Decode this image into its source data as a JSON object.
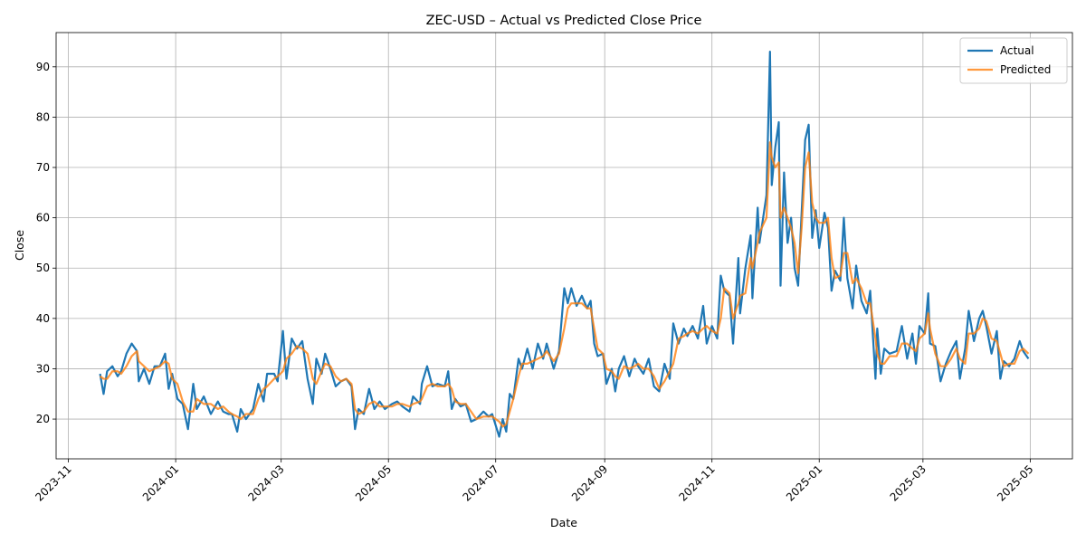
{
  "chart_data": {
    "type": "line",
    "title": "ZEC-USD – Actual vs Predicted Close Price",
    "xlabel": "Date",
    "ylabel": "Close",
    "x": [
      "2023-11-19",
      "2023-11-21",
      "2023-11-23",
      "2023-11-26",
      "2023-11-29",
      "2023-12-01",
      "2023-12-04",
      "2023-12-07",
      "2023-12-10",
      "2023-12-11",
      "2023-12-14",
      "2023-12-17",
      "2023-12-20",
      "2023-12-23",
      "2023-12-26",
      "2023-12-28",
      "2023-12-30",
      "2024-01-02",
      "2024-01-05",
      "2024-01-08",
      "2024-01-11",
      "2024-01-13",
      "2024-01-17",
      "2024-01-21",
      "2024-01-25",
      "2024-01-28",
      "2024-01-31",
      "2024-02-02",
      "2024-02-05",
      "2024-02-07",
      "2024-02-10",
      "2024-02-14",
      "2024-02-17",
      "2024-02-20",
      "2024-02-22",
      "2024-02-26",
      "2024-02-28",
      "2024-03-02",
      "2024-03-04",
      "2024-03-07",
      "2024-03-10",
      "2024-03-13",
      "2024-03-16",
      "2024-03-19",
      "2024-03-21",
      "2024-03-24",
      "2024-03-26",
      "2024-03-29",
      "2024-04-01",
      "2024-04-04",
      "2024-04-07",
      "2024-04-10",
      "2024-04-12",
      "2024-04-14",
      "2024-04-17",
      "2024-04-20",
      "2024-04-23",
      "2024-04-26",
      "2024-04-29",
      "2024-05-03",
      "2024-05-06",
      "2024-05-09",
      "2024-05-13",
      "2024-05-15",
      "2024-05-19",
      "2024-05-20",
      "2024-05-23",
      "2024-05-26",
      "2024-05-29",
      "2024-06-02",
      "2024-06-04",
      "2024-06-06",
      "2024-06-08",
      "2024-06-11",
      "2024-06-14",
      "2024-06-17",
      "2024-06-20",
      "2024-06-24",
      "2024-06-27",
      "2024-06-29",
      "2024-07-03",
      "2024-07-05",
      "2024-07-07",
      "2024-07-09",
      "2024-07-11",
      "2024-07-14",
      "2024-07-16",
      "2024-07-19",
      "2024-07-22",
      "2024-07-25",
      "2024-07-28",
      "2024-07-30",
      "2024-08-03",
      "2024-08-06",
      "2024-08-09",
      "2024-08-11",
      "2024-08-13",
      "2024-08-16",
      "2024-08-19",
      "2024-08-22",
      "2024-08-24",
      "2024-08-26",
      "2024-08-28",
      "2024-08-31",
      "2024-09-02",
      "2024-09-05",
      "2024-09-07",
      "2024-09-09",
      "2024-09-12",
      "2024-09-15",
      "2024-09-18",
      "2024-09-20",
      "2024-09-23",
      "2024-09-26",
      "2024-09-29",
      "2024-10-02",
      "2024-10-05",
      "2024-10-08",
      "2024-10-10",
      "2024-10-13",
      "2024-10-16",
      "2024-10-18",
      "2024-10-21",
      "2024-10-24",
      "2024-10-27",
      "2024-10-29",
      "2024-11-01",
      "2024-11-04",
      "2024-11-06",
      "2024-11-08",
      "2024-11-11",
      "2024-11-13",
      "2024-11-16",
      "2024-11-17",
      "2024-11-20",
      "2024-11-23",
      "2024-11-24",
      "2024-11-27",
      "2024-11-28",
      "2024-12-02",
      "2024-12-04",
      "2024-12-05",
      "2024-12-07",
      "2024-12-09",
      "2024-12-10",
      "2024-12-12",
      "2024-12-14",
      "2024-12-16",
      "2024-12-18",
      "2024-12-20",
      "2024-12-22",
      "2024-12-24",
      "2024-12-26",
      "2024-12-28",
      "2024-12-30",
      "2025-01-01",
      "2025-01-04",
      "2025-01-06",
      "2025-01-08",
      "2025-01-10",
      "2025-01-13",
      "2025-01-15",
      "2025-01-17",
      "2025-01-20",
      "2025-01-22",
      "2025-01-25",
      "2025-01-28",
      "2025-01-30",
      "2025-02-02",
      "2025-02-03",
      "2025-02-05",
      "2025-02-07",
      "2025-02-10",
      "2025-02-14",
      "2025-02-17",
      "2025-02-20",
      "2025-02-23",
      "2025-02-25",
      "2025-02-27",
      "2025-03-02",
      "2025-03-04",
      "2025-03-05",
      "2025-03-08",
      "2025-03-11",
      "2025-03-14",
      "2025-03-17",
      "2025-03-20",
      "2025-03-22",
      "2025-03-25",
      "2025-03-27",
      "2025-03-30",
      "2025-04-02",
      "2025-04-04",
      "2025-04-06",
      "2025-04-09",
      "2025-04-12",
      "2025-04-14",
      "2025-04-16",
      "2025-04-19",
      "2025-04-22",
      "2025-04-25",
      "2025-04-27",
      "2025-04-30"
    ],
    "series": [
      {
        "name": "Actual",
        "color": "#1f77b4",
        "values": [
          29,
          25,
          29.5,
          30.5,
          28.5,
          29.5,
          33,
          35,
          33.5,
          27.5,
          30,
          27,
          30.5,
          30.5,
          33,
          26,
          29,
          24,
          23,
          18,
          27,
          22,
          24.5,
          21,
          23.5,
          21.5,
          21,
          21,
          17.5,
          22,
          20,
          22,
          27,
          23.5,
          29,
          29,
          27.5,
          37.5,
          28,
          36,
          34,
          35.5,
          28,
          23,
          32,
          29,
          33,
          30,
          26.5,
          27.5,
          28,
          26.5,
          18,
          22,
          21,
          26,
          22,
          23.5,
          22,
          23,
          23.5,
          22.5,
          21.5,
          24.5,
          23,
          27,
          30.5,
          26.5,
          27,
          26.5,
          29.5,
          22,
          24,
          22.5,
          23,
          19.5,
          20,
          21.5,
          20.5,
          21,
          16.5,
          20,
          17.5,
          25,
          24,
          32,
          30,
          34,
          30,
          35,
          32,
          35,
          30,
          33.5,
          46,
          43,
          46,
          42.5,
          44.5,
          42,
          43.5,
          35,
          32.5,
          33,
          27,
          30,
          25.5,
          30,
          32.5,
          28.5,
          32,
          30.5,
          29,
          32,
          26.5,
          25.5,
          31,
          28,
          39,
          35,
          38,
          36.5,
          38.5,
          36,
          42.5,
          35,
          38.5,
          36,
          48.5,
          45.5,
          44.5,
          35,
          52,
          41,
          50,
          56.5,
          44,
          62,
          55,
          64.5,
          93,
          66.5,
          74,
          79,
          46.5,
          69,
          55,
          60,
          50,
          46.5,
          61,
          75.5,
          78.5,
          56,
          61.5,
          54,
          61,
          58,
          45.5,
          49.5,
          47.5,
          60,
          48,
          42,
          50.5,
          43.5,
          41,
          45.5,
          28,
          38,
          29,
          34,
          33,
          33.5,
          38.5,
          32,
          37,
          31,
          38.5,
          37,
          45,
          35,
          34.5,
          27.5,
          31,
          33.5,
          35.5,
          28,
          34,
          41.5,
          35.5,
          40,
          41.5,
          38.5,
          33,
          37.5,
          28,
          31.5,
          30.5,
          32,
          35.5,
          33.5,
          32
        ]
      },
      {
        "name": "Predicted",
        "color": "#ff7f0e",
        "values": [
          28.5,
          28,
          28,
          29.5,
          29.5,
          29,
          30.5,
          32.5,
          33.5,
          31.5,
          30.5,
          29.5,
          30,
          30.5,
          31.5,
          31,
          28,
          27,
          23.5,
          21.5,
          21.5,
          24,
          23,
          23,
          22,
          22.5,
          21.5,
          21,
          20.5,
          20,
          21,
          21,
          24,
          26,
          26.5,
          28,
          28.5,
          29.5,
          32,
          33,
          34.5,
          34,
          33,
          28,
          27,
          29.5,
          31,
          30.5,
          28.5,
          27.5,
          28,
          27,
          22,
          21,
          21.5,
          23,
          23.5,
          22.5,
          22.5,
          22.5,
          23,
          23,
          22.5,
          23,
          23.5,
          24,
          26.5,
          27,
          26.5,
          26.5,
          27,
          26,
          23.5,
          23,
          23,
          21.5,
          20,
          20.5,
          20.5,
          20.5,
          19.5,
          18.5,
          19,
          21.5,
          24,
          28.5,
          31,
          31,
          31.5,
          32,
          32.5,
          33.5,
          31.5,
          33,
          38,
          42,
          43,
          43,
          43,
          42,
          42,
          38,
          34,
          33,
          30,
          29.5,
          28.5,
          28,
          30.5,
          30,
          30.5,
          31,
          30,
          30,
          28.5,
          26,
          27.5,
          29.5,
          31,
          36,
          36.5,
          37,
          37.5,
          37,
          38,
          38.5,
          37.5,
          37,
          40,
          46,
          45,
          40,
          43,
          44.5,
          45,
          52,
          50,
          55,
          57,
          60,
          75,
          72,
          70,
          71,
          60,
          62,
          60,
          58,
          55,
          49,
          58,
          70,
          73,
          63,
          60,
          59,
          59,
          60,
          52,
          48,
          48.5,
          53,
          53,
          47,
          48,
          46,
          43,
          43,
          36,
          33,
          31,
          31,
          32.5,
          32.5,
          35,
          35,
          34,
          33.5,
          36,
          37,
          41,
          38,
          33,
          30.5,
          30.5,
          32,
          34,
          32,
          31,
          37,
          37,
          38,
          40,
          39.5,
          36,
          35.5,
          33,
          30.5,
          31,
          31,
          33.5,
          34,
          33
        ]
      }
    ],
    "xlim": [
      "2023-10-25",
      "2025-05-25"
    ],
    "ylim": [
      12.1,
      96.8
    ],
    "xticks": [
      {
        "value": "2023-11-01",
        "label": "2023-11"
      },
      {
        "value": "2024-01-01",
        "label": "2024-01"
      },
      {
        "value": "2024-03-01",
        "label": "2024-03"
      },
      {
        "value": "2024-05-01",
        "label": "2024-05"
      },
      {
        "value": "2024-07-01",
        "label": "2024-07"
      },
      {
        "value": "2024-09-01",
        "label": "2024-09"
      },
      {
        "value": "2024-11-01",
        "label": "2024-11"
      },
      {
        "value": "2025-01-01",
        "label": "2025-01"
      },
      {
        "value": "2025-03-01",
        "label": "2025-03"
      },
      {
        "value": "2025-05-01",
        "label": "2025-05"
      }
    ],
    "yticks": [
      20,
      30,
      40,
      50,
      60,
      70,
      80,
      90
    ],
    "grid": true,
    "legend": "upper right"
  }
}
